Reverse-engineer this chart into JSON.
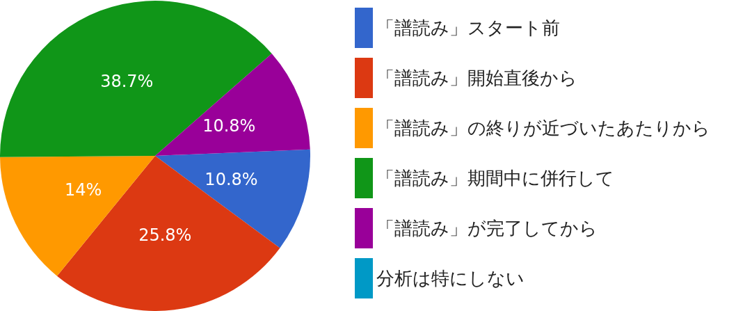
{
  "chart_data": {
    "type": "pie",
    "categories": [
      "「譜読み」スタート前",
      "「譜読み」開始直後から",
      "「譜読み」の終りが近づいたあたりから",
      "「譜読み」期間中に併行して",
      "「譜読み」が完了してから",
      "分析は特にしない"
    ],
    "values": [
      10.8,
      25.8,
      14,
      38.7,
      10.8,
      0
    ],
    "colors": [
      "#3366cc",
      "#dc3912",
      "#ff9900",
      "#109618",
      "#990099",
      "#0099c6"
    ],
    "value_labels": [
      "10.8%",
      "25.8%",
      "14%",
      "38.7%",
      "10.8%",
      null
    ],
    "legend": "right"
  }
}
